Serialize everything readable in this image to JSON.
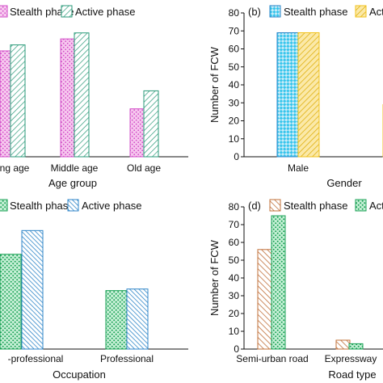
{
  "colors": {
    "magenta": "#d24fc8",
    "teal": "#2a9a78",
    "blue": "#2f86c8",
    "gold": "#f2c21a",
    "green": "#1aa055",
    "orange": "#c0703a",
    "axis": "#111111"
  },
  "chart_data": [
    {
      "type": "bar",
      "panel_label": "",
      "xlabel": "Age group",
      "ylabel": "",
      "categories": [
        "ng age",
        "Middle age",
        "Old age"
      ],
      "series": [
        {
          "name": "Stealth phase",
          "values": [
            53,
            59,
            24
          ]
        },
        {
          "name": "Active phase",
          "values": [
            56,
            62,
            33
          ]
        }
      ],
      "ylim": [
        0,
        72
      ],
      "yticks": [],
      "legend": "top",
      "grid": false
    },
    {
      "type": "bar",
      "panel_label": "(b)",
      "xlabel": "Gender",
      "ylabel": "Number of FCW",
      "categories": [
        "Male",
        ""
      ],
      "series": [
        {
          "name": "Stealth phase",
          "values": [
            69,
            0
          ]
        },
        {
          "name": "Active phase",
          "values": [
            69,
            29
          ]
        }
      ],
      "ylim": [
        0,
        80
      ],
      "yticks": [
        0,
        10,
        20,
        30,
        40,
        50,
        60,
        70,
        80
      ],
      "legend": "top",
      "grid": false
    },
    {
      "type": "bar",
      "panel_label": "",
      "xlabel": "Occupation",
      "ylabel": "",
      "categories": [
        "-professional",
        "Professional"
      ],
      "series": [
        {
          "name": "Stealth phase",
          "values": [
            60,
            37
          ]
        },
        {
          "name": "Active phase",
          "values": [
            75,
            38
          ]
        }
      ],
      "ylim": [
        0,
        90
      ],
      "yticks": [],
      "legend": "top",
      "grid": false
    },
    {
      "type": "bar",
      "panel_label": "(d)",
      "xlabel": "Road type",
      "ylabel": "Number of FCW",
      "categories": [
        "Semi-urban road",
        "Expressway"
      ],
      "series": [
        {
          "name": "Stealth phase",
          "values": [
            56,
            5
          ]
        },
        {
          "name": "Active phase",
          "values": [
            75,
            3
          ]
        }
      ],
      "ylim": [
        0,
        80
      ],
      "yticks": [
        0,
        10,
        20,
        30,
        40,
        50,
        60,
        70,
        80
      ],
      "legend": "top",
      "grid": false
    }
  ]
}
